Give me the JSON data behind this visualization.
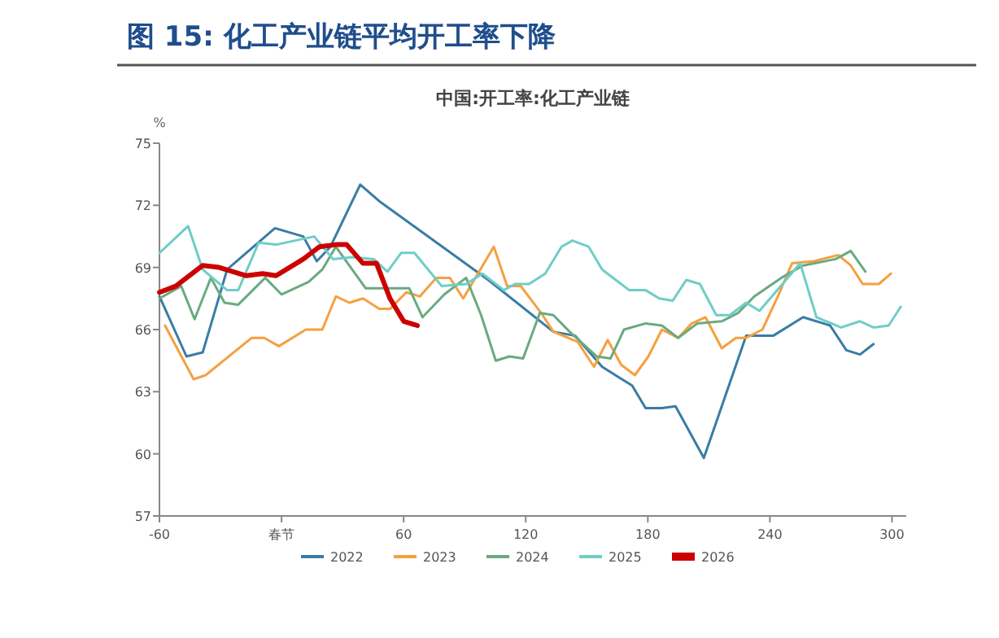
{
  "chart_data": {
    "type": "line",
    "title": "中国:开工率:化工产业链",
    "subtitle": "图 15:  化工产业链平均开工率下降",
    "ylabel": "%",
    "xlim": [
      -60,
      307
    ],
    "xticks": [
      -60,
      {
        "value": 0,
        "label": "春节"
      },
      60,
      120,
      180,
      240,
      300
    ],
    "ylim": [
      57,
      75
    ],
    "yticks": [
      57,
      60,
      63,
      66,
      69,
      72,
      75
    ],
    "grid": false,
    "legend": "bottom",
    "line_style": "solid",
    "series": [
      {
        "name": "2022",
        "color": "#3a7ca5",
        "x": [
          -60,
          -46.7,
          -38.7,
          -26.7,
          -3.2,
          10.7,
          17.3,
          24,
          38.7,
          48,
          101.6,
          133.6,
          144.3,
          157.6,
          172.3,
          178.9,
          186.9,
          193.6,
          207.5,
          228.3,
          241.6,
          256.3,
          269.6,
          277.6,
          284.3,
          290.9
        ],
        "values": [
          67.6,
          64.7,
          64.9,
          68.9,
          70.9,
          70.5,
          69.3,
          70.0,
          73.0,
          72.2,
          68.4,
          65.9,
          65.7,
          64.2,
          63.3,
          62.2,
          62.2,
          62.3,
          59.8,
          65.7,
          65.7,
          66.6,
          66.2,
          65.0,
          64.8,
          65.3
        ]
      },
      {
        "name": "2023",
        "color": "#f5a040",
        "x": [
          -57.3,
          -43.2,
          -37.3,
          -14.7,
          -8.5,
          -1.3,
          12,
          20,
          26.7,
          33.3,
          40,
          48,
          53.3,
          61.3,
          68,
          76,
          82.7,
          89.3,
          104.3,
          110.9,
          117.6,
          128.3,
          133.6,
          145.6,
          153.6,
          160.3,
          166.9,
          173.6,
          180.3,
          186.9,
          194.9,
          201.6,
          208.3,
          216.3,
          223.3,
          228.3,
          236.3,
          244.3,
          250.9,
          261.6,
          273.6,
          279.7,
          285.6,
          293.6,
          299.5
        ],
        "values": [
          66.2,
          63.6,
          63.8,
          65.6,
          65.6,
          65.2,
          66.0,
          66.0,
          67.6,
          67.3,
          67.5,
          67.0,
          67.0,
          67.8,
          67.6,
          68.5,
          68.5,
          67.5,
          70.0,
          68.1,
          68.1,
          66.7,
          65.9,
          65.4,
          64.2,
          65.5,
          64.3,
          63.8,
          64.7,
          66.0,
          65.6,
          66.3,
          66.6,
          65.1,
          65.6,
          65.6,
          66.0,
          67.7,
          69.2,
          69.3,
          69.6,
          69.1,
          68.2,
          68.2,
          68.7
        ]
      },
      {
        "name": "2024",
        "color": "#6aaa80",
        "x": [
          -60,
          -49.3,
          -42.7,
          -34.7,
          -28,
          -21.3,
          -8,
          0,
          13.3,
          20,
          26.7,
          41.3,
          50.7,
          62.7,
          69.3,
          80,
          90.7,
          98.1,
          105.3,
          112,
          118.7,
          126.9,
          133.6,
          141.6,
          154.9,
          161.6,
          168.3,
          178.9,
          186.9,
          194.9,
          204.3,
          216.3,
          224.3,
          232.3,
          245.6,
          256.3,
          272.3,
          279.7,
          286.9
        ],
        "values": [
          67.5,
          68.1,
          66.5,
          68.5,
          67.3,
          67.2,
          68.5,
          67.7,
          68.3,
          68.9,
          70.0,
          68.0,
          68.0,
          68.0,
          66.6,
          67.7,
          68.5,
          66.7,
          64.5,
          64.7,
          64.6,
          66.8,
          66.7,
          65.9,
          64.7,
          64.6,
          66.0,
          66.3,
          66.2,
          65.6,
          66.3,
          66.4,
          66.8,
          67.6,
          68.5,
          69.1,
          69.4,
          69.8,
          68.8
        ]
      },
      {
        "name": "2025",
        "color": "#6fcdc8",
        "x": [
          -60,
          -45.9,
          -38.7,
          -26.7,
          -21.3,
          -11.2,
          -2.7,
          16,
          25.3,
          34.7,
          45.3,
          52,
          58.7,
          65.3,
          78.7,
          90.7,
          98.7,
          109.3,
          114.7,
          121.6,
          129.6,
          137.6,
          142.9,
          150.9,
          157.6,
          170.9,
          178.9,
          185.6,
          192.3,
          198.9,
          205.6,
          213.6,
          220.3,
          228.3,
          234.9,
          254.9,
          262.9,
          274.9,
          284.3,
          290.9,
          298.4,
          304.3
        ],
        "values": [
          69.7,
          71.0,
          68.9,
          67.9,
          67.9,
          70.2,
          70.1,
          70.5,
          69.4,
          69.5,
          69.4,
          68.8,
          69.7,
          69.7,
          68.1,
          68.2,
          68.7,
          67.9,
          68.2,
          68.2,
          68.7,
          70.0,
          70.3,
          70.0,
          68.9,
          67.9,
          67.9,
          67.5,
          67.4,
          68.4,
          68.2,
          66.7,
          66.7,
          67.3,
          66.9,
          69.2,
          66.6,
          66.1,
          66.4,
          66.1,
          66.2,
          67.1
        ]
      },
      {
        "name": "2026",
        "color": "#cc0000",
        "x": [
          -60,
          -52,
          -38.7,
          -30.7,
          -17.3,
          -9.3,
          -2.7,
          10.7,
          18.7,
          26.7,
          32,
          40,
          46.7,
          53.3,
          60,
          66.7
        ],
        "values": [
          67.8,
          68.1,
          69.1,
          69.0,
          68.6,
          68.7,
          68.6,
          69.4,
          70.0,
          70.1,
          70.1,
          69.2,
          69.2,
          67.5,
          66.4,
          66.2
        ]
      }
    ]
  }
}
